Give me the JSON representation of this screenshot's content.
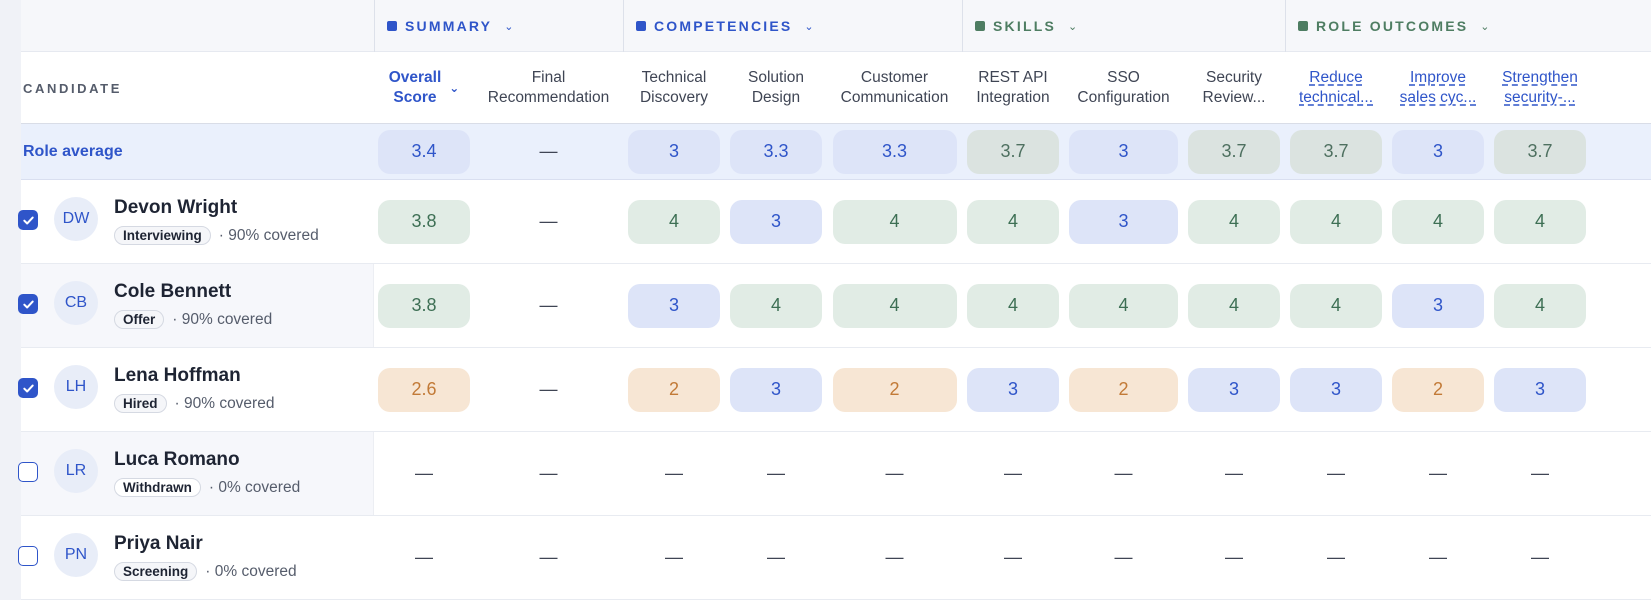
{
  "groups": [
    {
      "label": "SUMMARY",
      "color": "#2f55c9"
    },
    {
      "label": "COMPETENCIES",
      "color": "#2f55c9"
    },
    {
      "label": "SKILLS",
      "color": "#4e7d62"
    },
    {
      "label": "ROLE OUTCOMES",
      "color": "#4e7d62"
    }
  ],
  "candidate_header": "CANDIDATE",
  "columns": [
    {
      "label": "Overall Score",
      "line1": "Overall",
      "line2": "Score"
    },
    {
      "label": "Final Recommendation",
      "line1": "Final",
      "line2": "Recommendation"
    },
    {
      "label": "Technical Discovery",
      "line1": "Technical",
      "line2": "Discovery"
    },
    {
      "label": "Solution Design",
      "line1": "Solution",
      "line2": "Design"
    },
    {
      "label": "Customer Communication",
      "line1": "Customer",
      "line2": "Communication"
    },
    {
      "label": "REST API Integration",
      "line1": "REST API",
      "line2": "Integration"
    },
    {
      "label": "SSO Configuration",
      "line1": "SSO",
      "line2": "Configuration"
    },
    {
      "label": "Security Review...",
      "line1": "Security",
      "line2": "Review..."
    },
    {
      "label": "Reduce technical...",
      "line1": "Reduce",
      "line2": "technical..."
    },
    {
      "label": "Improve sales cyc...",
      "line1": "Improve",
      "line2": "sales cyc..."
    },
    {
      "label": "Strengthen security-...",
      "line1": "Strengthen",
      "line2": "security-..."
    }
  ],
  "role_average": {
    "label": "Role average",
    "values": [
      "3.4",
      "—",
      "3",
      "3.3",
      "3.3",
      "3.7",
      "3",
      "3.7",
      "3.7",
      "3",
      "3.7"
    ]
  },
  "candidates": [
    {
      "name": "Devon Wright",
      "initials": "DW",
      "status": "Interviewing",
      "coverage": "· 90% covered",
      "checked": true,
      "scores": [
        "3.8",
        "—",
        "4",
        "3",
        "4",
        "4",
        "3",
        "4",
        "4",
        "4",
        "4"
      ]
    },
    {
      "name": "Cole Bennett",
      "initials": "CB",
      "status": "Offer",
      "coverage": "· 90% covered",
      "checked": true,
      "scores": [
        "3.8",
        "—",
        "3",
        "4",
        "4",
        "4",
        "4",
        "4",
        "4",
        "3",
        "4"
      ]
    },
    {
      "name": "Lena Hoffman",
      "initials": "LH",
      "status": "Hired",
      "coverage": "· 90% covered",
      "checked": true,
      "scores": [
        "2.6",
        "—",
        "2",
        "3",
        "2",
        "3",
        "2",
        "3",
        "3",
        "2",
        "3"
      ]
    },
    {
      "name": "Luca Romano",
      "initials": "LR",
      "status": "Withdrawn",
      "coverage": "· 0% covered",
      "checked": false,
      "scores": [
        "—",
        "—",
        "—",
        "—",
        "—",
        "—",
        "—",
        "—",
        "—",
        "—",
        "—"
      ]
    },
    {
      "name": "Priya Nair",
      "initials": "PN",
      "status": "Screening",
      "coverage": "· 0% covered",
      "checked": false,
      "scores": [
        "—",
        "—",
        "—",
        "—",
        "—",
        "—",
        "—",
        "—",
        "—",
        "—",
        "—"
      ]
    }
  ],
  "colors": {
    "accent": "#2f55c9",
    "skills": "#4e7d62",
    "high": "#e1ece5",
    "mid": "#dde4f8",
    "low": "#f7e6d4"
  }
}
